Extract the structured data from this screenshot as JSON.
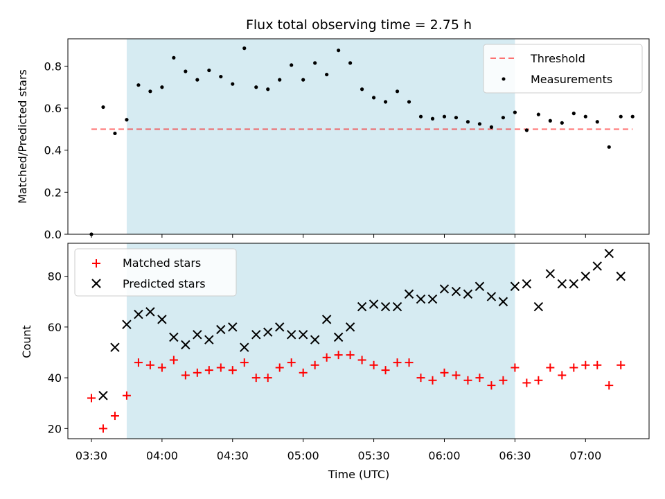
{
  "chart_data": [
    {
      "type": "scatter",
      "title": "Flux total observing time = 2.75 h",
      "xlabel": "",
      "ylabel": "Matched/Predicted stars",
      "ylim": [
        0,
        0.93
      ],
      "yticks": [
        "0.0",
        "0.2",
        "0.4",
        "0.6",
        "0.8"
      ],
      "x_range_minutes": [
        210,
        445
      ],
      "shaded_range_minutes": [
        225,
        390
      ],
      "threshold": {
        "name": "Threshold",
        "value": 0.5,
        "x_start_minutes": 210,
        "x_end_minutes": 440
      },
      "legend_position": "upper right",
      "series": [
        {
          "name": "Measurements",
          "color": "#000000",
          "marker": "dot",
          "x_minutes": [
            210,
            215,
            220,
            225,
            230,
            235,
            240,
            245,
            250,
            255,
            260,
            265,
            270,
            275,
            280,
            285,
            290,
            295,
            300,
            305,
            310,
            315,
            320,
            325,
            330,
            335,
            340,
            345,
            350,
            355,
            360,
            365,
            370,
            375,
            380,
            385,
            390,
            395,
            400,
            405,
            410,
            415,
            420,
            425,
            430,
            435,
            440
          ],
          "values": [
            0.0,
            0.605,
            0.48,
            0.545,
            0.71,
            0.68,
            0.7,
            0.84,
            0.775,
            0.735,
            0.78,
            0.75,
            0.715,
            0.885,
            0.7,
            0.69,
            0.735,
            0.805,
            0.735,
            0.815,
            0.76,
            0.875,
            0.815,
            0.69,
            0.65,
            0.63,
            0.68,
            0.63,
            0.56,
            0.55,
            0.56,
            0.555,
            0.535,
            0.525,
            0.51,
            0.555,
            0.58,
            0.495,
            0.57,
            0.54,
            0.53,
            0.575,
            0.56,
            0.535,
            0.415,
            0.56,
            0.56
          ]
        }
      ]
    },
    {
      "type": "scatter",
      "title": "",
      "xlabel": "Time (UTC)",
      "ylabel": "Count",
      "ylim": [
        16,
        93
      ],
      "yticks": [
        "20",
        "40",
        "60",
        "80"
      ],
      "xticks": [
        "03:30",
        "04:00",
        "04:30",
        "05:00",
        "05:30",
        "06:00",
        "06:30",
        "07:00"
      ],
      "xtick_minutes": [
        210,
        240,
        270,
        300,
        330,
        360,
        390,
        420
      ],
      "x_range_minutes": [
        200,
        447
      ],
      "shaded_range_minutes": [
        225,
        390
      ],
      "legend_position": "upper left",
      "series": [
        {
          "name": "Matched stars",
          "color": "#ff0000",
          "marker": "plus",
          "x_minutes": [
            210,
            215,
            220,
            225,
            230,
            235,
            240,
            245,
            250,
            255,
            260,
            265,
            270,
            275,
            280,
            285,
            290,
            295,
            300,
            305,
            310,
            315,
            320,
            325,
            330,
            335,
            340,
            345,
            350,
            355,
            360,
            365,
            370,
            375,
            380,
            385,
            390,
            395,
            400,
            405,
            410,
            415,
            420,
            425,
            430,
            435
          ],
          "values": [
            32,
            20,
            25,
            33,
            46,
            45,
            44,
            47,
            41,
            42,
            43,
            44,
            43,
            46,
            40,
            40,
            44,
            46,
            42,
            45,
            48,
            49,
            49,
            47,
            45,
            43,
            46,
            46,
            40,
            39,
            42,
            41,
            39,
            40,
            37,
            39,
            44,
            38,
            39,
            44,
            41,
            44,
            45,
            45,
            37,
            45
          ]
        },
        {
          "name": "Predicted stars",
          "color": "#000000",
          "marker": "x",
          "x_minutes": [
            215,
            220,
            225,
            230,
            235,
            240,
            245,
            250,
            255,
            260,
            265,
            270,
            275,
            280,
            285,
            290,
            295,
            300,
            305,
            310,
            315,
            320,
            325,
            330,
            335,
            340,
            345,
            350,
            355,
            360,
            365,
            370,
            375,
            380,
            385,
            390,
            395,
            400,
            405,
            410,
            415,
            420,
            425,
            430,
            435
          ],
          "values": [
            33,
            52,
            61,
            65,
            66,
            63,
            56,
            53,
            57,
            55,
            59,
            60,
            52,
            57,
            58,
            60,
            57,
            57,
            55,
            63,
            56,
            60,
            68,
            69,
            68,
            68,
            73,
            71,
            71,
            75,
            74,
            73,
            76,
            72,
            70,
            76,
            77,
            68,
            81,
            77,
            77,
            80,
            84,
            89,
            80
          ]
        }
      ]
    }
  ]
}
